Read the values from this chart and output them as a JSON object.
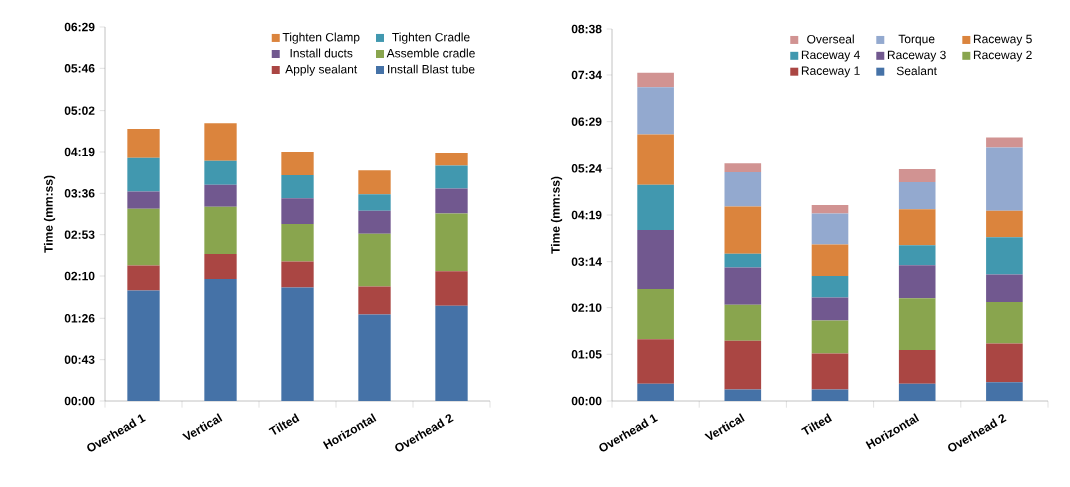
{
  "chart_data": [
    {
      "type": "bar",
      "stacked": true,
      "ylabel": "Time (mm:ss)",
      "legend": "top",
      "categories": [
        "Overhead 1",
        "Vertical",
        "Tilted",
        "Horizontal",
        "Overhead 2"
      ],
      "ylim": [
        0,
        389
      ],
      "yticks": [
        {
          "value": 0,
          "label": "00:00"
        },
        {
          "value": 43,
          "label": "00:43"
        },
        {
          "value": 86,
          "label": "01:26"
        },
        {
          "value": 130,
          "label": "02:10"
        },
        {
          "value": 173,
          "label": "02:53"
        },
        {
          "value": 216,
          "label": "03:36"
        },
        {
          "value": 259,
          "label": "04:19"
        },
        {
          "value": 302,
          "label": "05:02"
        },
        {
          "value": 346,
          "label": "05:46"
        },
        {
          "value": 389,
          "label": "06:29"
        }
      ],
      "series": [
        {
          "name": "Install Blast tube",
          "color": "#4572a7",
          "values": [
            115,
            127,
            118,
            90,
            99
          ]
        },
        {
          "name": "Apply sealant",
          "color": "#aa4643",
          "values": [
            26,
            26,
            27,
            29,
            36
          ]
        },
        {
          "name": "Assemble cradle",
          "color": "#89a54e",
          "values": [
            59,
            49,
            39,
            55,
            60
          ]
        },
        {
          "name": "Install ducts",
          "color": "#71588f",
          "values": [
            18,
            23,
            27,
            24,
            26
          ]
        },
        {
          "name": "Tighten Cradle",
          "color": "#4198af",
          "values": [
            35,
            25,
            24,
            17,
            24
          ]
        },
        {
          "name": "Tighten Clamp",
          "color": "#db843d",
          "values": [
            30,
            39,
            24,
            25,
            13
          ]
        }
      ]
    },
    {
      "type": "bar",
      "stacked": true,
      "ylabel": "Time (mm:ss)",
      "legend": "top",
      "categories": [
        "Overhead 1",
        "Vertical",
        "Tilted",
        "Horizontal",
        "Overhead 2"
      ],
      "ylim": [
        0,
        518
      ],
      "yticks": [
        {
          "value": 0,
          "label": "00:00"
        },
        {
          "value": 65,
          "label": "01:05"
        },
        {
          "value": 130,
          "label": "02:10"
        },
        {
          "value": 194,
          "label": "03:14"
        },
        {
          "value": 259,
          "label": "04:19"
        },
        {
          "value": 324,
          "label": "05:24"
        },
        {
          "value": 389,
          "label": "06:29"
        },
        {
          "value": 454,
          "label": "07:34"
        },
        {
          "value": 518,
          "label": "08:38"
        }
      ],
      "series": [
        {
          "name": "Sealant",
          "color": "#4572a7",
          "values": [
            24,
            16,
            16,
            24,
            26
          ]
        },
        {
          "name": "Raceway 1",
          "color": "#aa4643",
          "values": [
            62,
            68,
            50,
            47,
            54
          ]
        },
        {
          "name": "Raceway 2",
          "color": "#89a54e",
          "values": [
            70,
            50,
            46,
            72,
            58
          ]
        },
        {
          "name": "Raceway 3",
          "color": "#71588f",
          "values": [
            82,
            52,
            32,
            46,
            38
          ]
        },
        {
          "name": "Raceway 4",
          "color": "#4198af",
          "values": [
            63,
            19,
            30,
            28,
            52
          ]
        },
        {
          "name": "Raceway 5",
          "color": "#db843d",
          "values": [
            70,
            66,
            44,
            50,
            37
          ]
        },
        {
          "name": "Torque",
          "color": "#93a9cf",
          "values": [
            66,
            48,
            43,
            38,
            88
          ]
        },
        {
          "name": "Overseal",
          "color": "#d19392",
          "values": [
            20,
            12,
            12,
            18,
            14
          ]
        }
      ]
    }
  ]
}
